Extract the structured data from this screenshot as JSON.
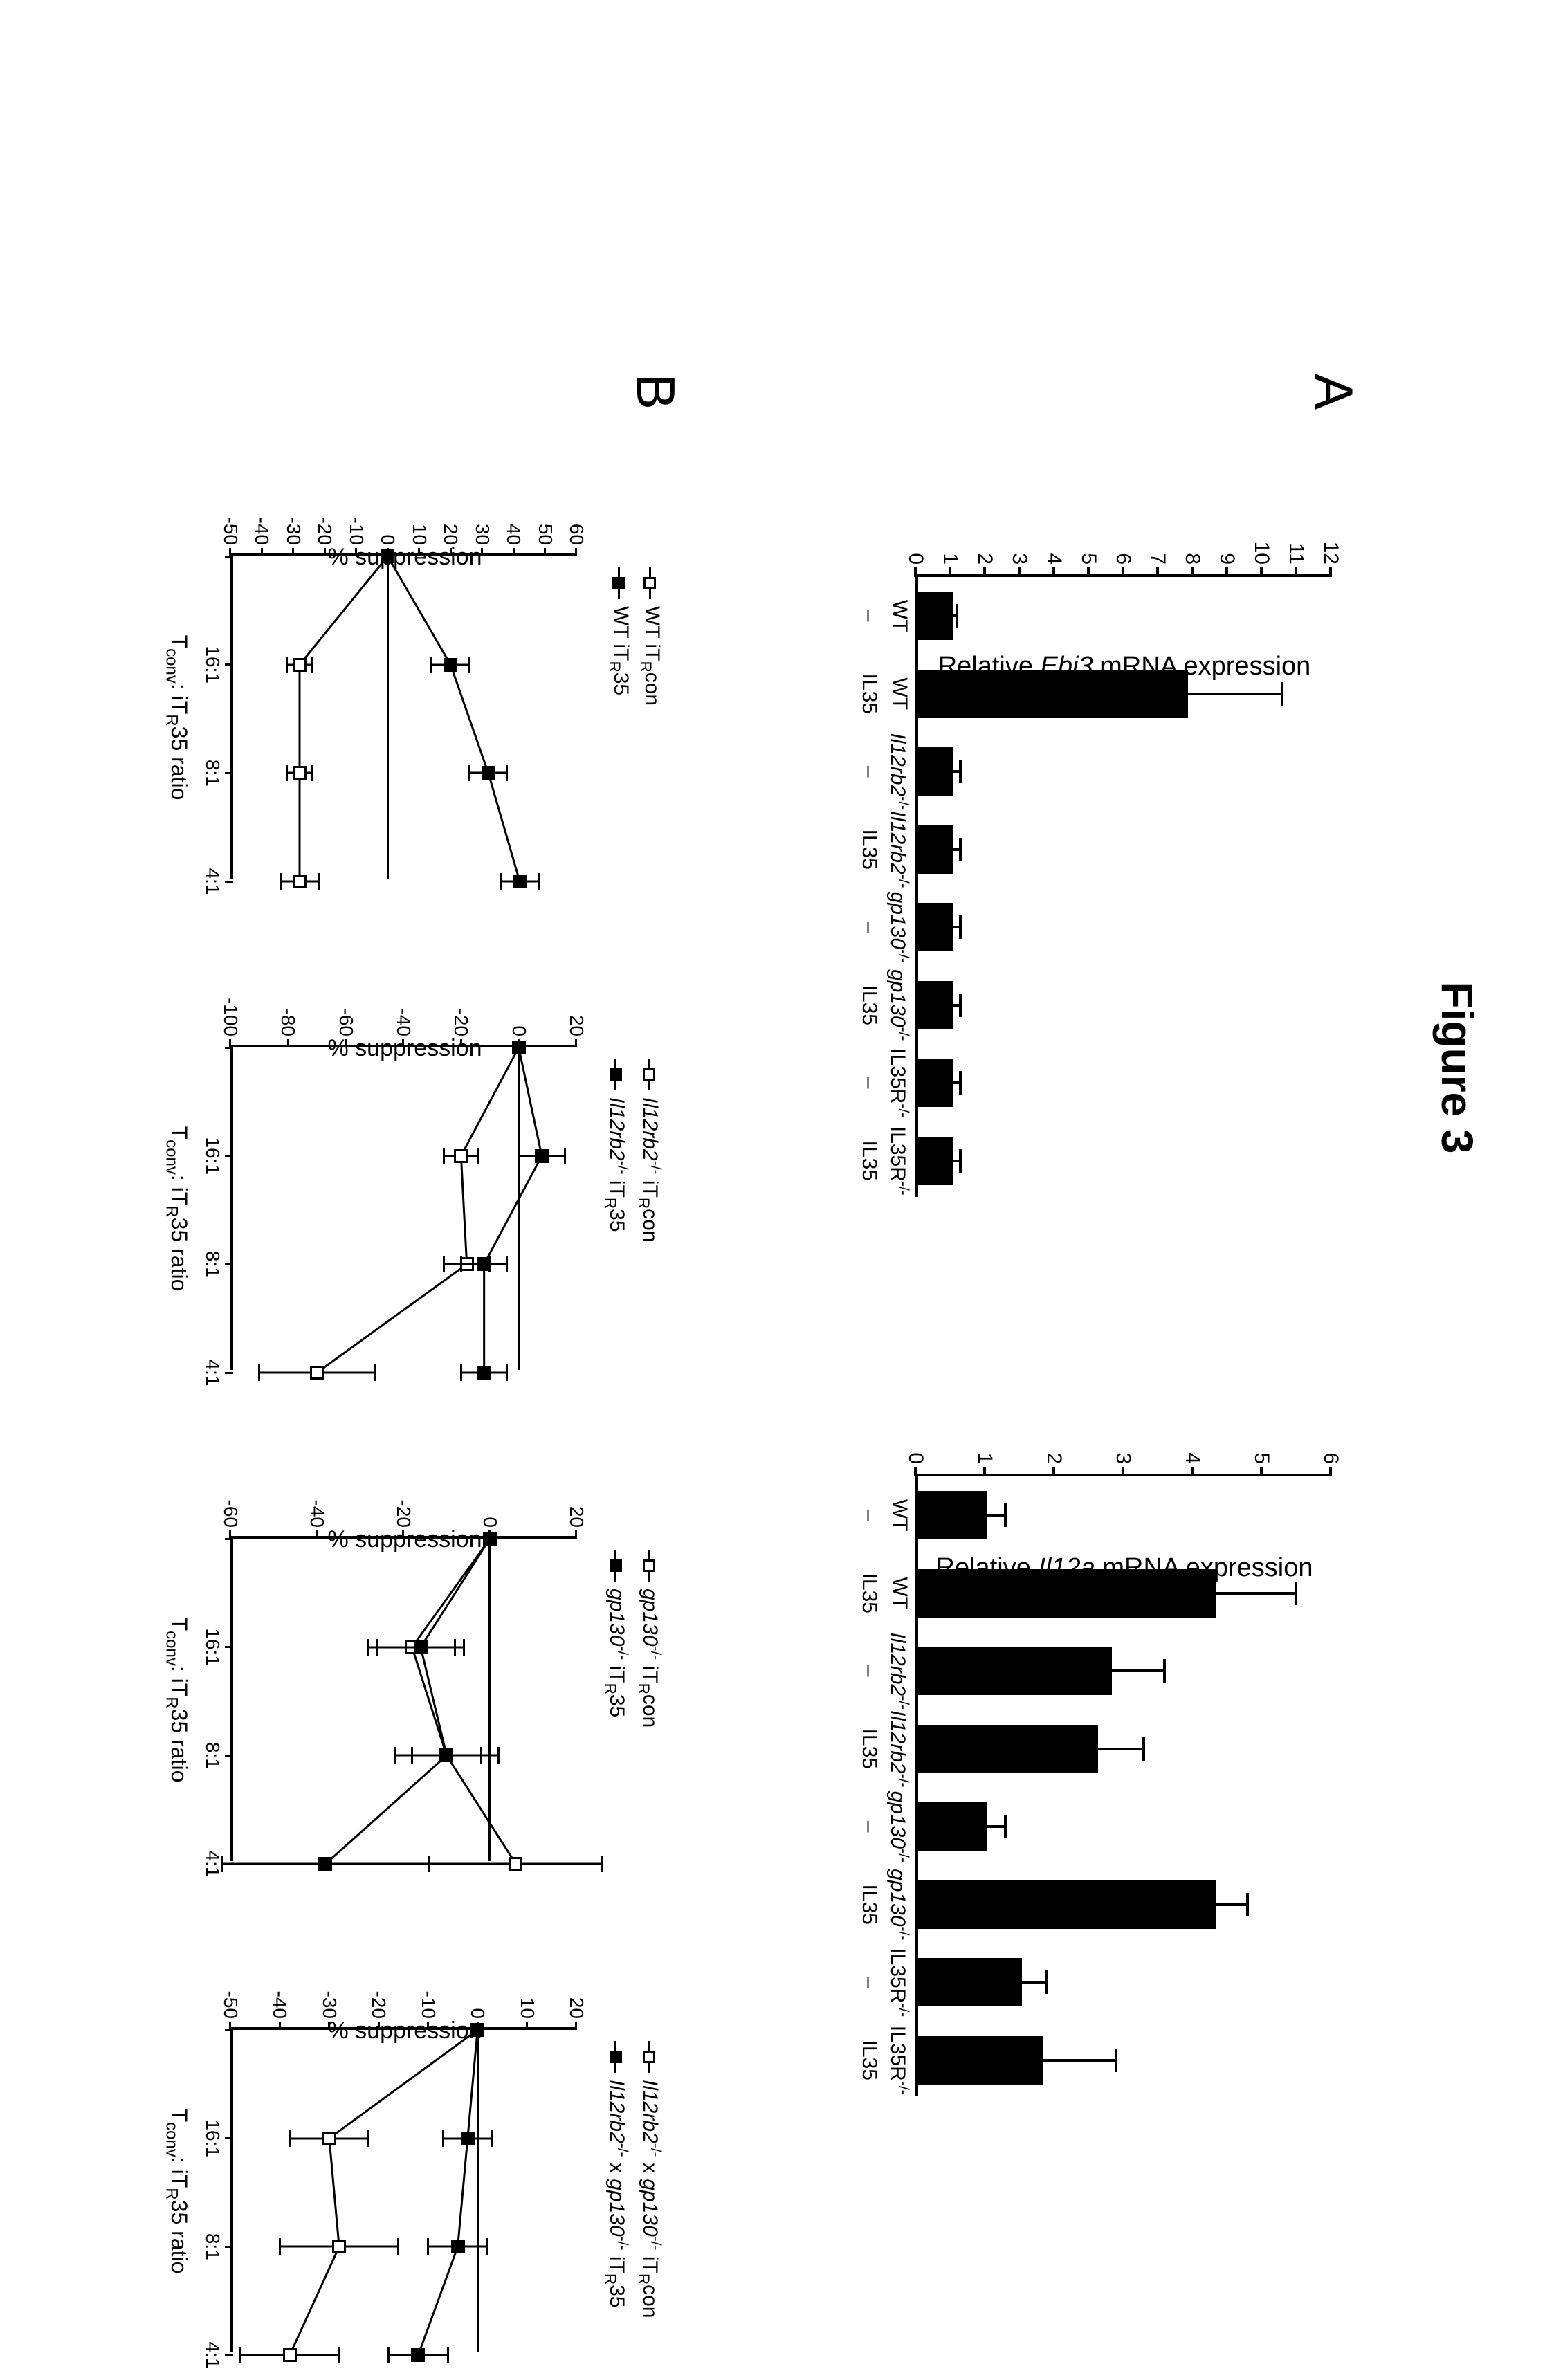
{
  "figure_title": "Figure 3",
  "panelA": {
    "label": "A",
    "charts": [
      {
        "ylabel_html": "Relative <i>Ebi3</i> mRNA expression",
        "ymin": 0,
        "ymax": 12,
        "ystep": 1,
        "bar_color": "#000000",
        "categories": [
          {
            "top_html": "WT",
            "sub": "–"
          },
          {
            "top_html": "WT",
            "sub": "IL35"
          },
          {
            "top_html": "<i>Il12rb2</i><span class=\"sup\">-/-</span>",
            "sub": "–"
          },
          {
            "top_html": "<i>Il12rb2</i><span class=\"sup\">-/-</span>",
            "sub": "IL35"
          },
          {
            "top_html": "<i>gp130</i><span class=\"sup\">-/-</span>",
            "sub": "–"
          },
          {
            "top_html": "<i>gp130</i><span class=\"sup\">-/-</span>",
            "sub": "IL35"
          },
          {
            "top_html": "IL35R<span class=\"sup\">-/-</span>",
            "sub": "–"
          },
          {
            "top_html": "IL35R<span class=\"sup\">-/-</span>",
            "sub": "IL35"
          }
        ],
        "values": [
          1.0,
          7.8,
          1.0,
          1.0,
          1.0,
          1.0,
          1.0,
          1.0
        ],
        "errs": [
          0.2,
          2.8,
          0.3,
          0.3,
          0.3,
          0.3,
          0.3,
          0.3
        ]
      },
      {
        "ylabel_html": "Relative <i>Il12a</i> mRNA expression",
        "ymin": 0,
        "ymax": 6,
        "ystep": 1,
        "bar_color": "#000000",
        "categories": [
          {
            "top_html": "WT",
            "sub": "–"
          },
          {
            "top_html": "WT",
            "sub": "IL35"
          },
          {
            "top_html": "<i>Il12rb2</i><span class=\"sup\">-/-</span>",
            "sub": "–"
          },
          {
            "top_html": "<i>Il12rb2</i><span class=\"sup\">-/-</span>",
            "sub": "IL35"
          },
          {
            "top_html": "<i>gp130</i><span class=\"sup\">-/-</span>",
            "sub": "–"
          },
          {
            "top_html": "<i>gp130</i><span class=\"sup\">-/-</span>",
            "sub": "IL35"
          },
          {
            "top_html": "IL35R<span class=\"sup\">-/-</span>",
            "sub": "–"
          },
          {
            "top_html": "IL35R<span class=\"sup\">-/-</span>",
            "sub": "IL35"
          }
        ],
        "values": [
          1.0,
          4.3,
          2.8,
          2.6,
          1.0,
          4.3,
          1.5,
          1.8
        ],
        "errs": [
          0.3,
          1.2,
          0.8,
          0.7,
          0.3,
          0.5,
          0.4,
          1.1
        ]
      }
    ]
  },
  "panelB": {
    "label": "B",
    "xlabel_html": "T<span class=\"sub\">conv</span>: iT<span class=\"sub\">R</span>35 ratio",
    "ylabel": "% suppression",
    "xcats": [
      "",
      "16:1",
      "8:1",
      "4:1"
    ],
    "charts": [
      {
        "ymin": -50,
        "ymax": 60,
        "ystep": 10,
        "legend": [
          {
            "marker": "open",
            "html": "WT iT<span class=\"sub\">R</span>con"
          },
          {
            "marker": "filled",
            "html": "WT iT<span class=\"sub\">R</span>35"
          }
        ],
        "series": [
          {
            "marker": "open",
            "y": [
              0,
              -28,
              -28,
              -28
            ],
            "err": [
              0,
              4,
              4,
              6
            ]
          },
          {
            "marker": "filled",
            "y": [
              0,
              20,
              32,
              42
            ],
            "err": [
              0,
              6,
              6,
              6
            ]
          }
        ]
      },
      {
        "ymin": -100,
        "ymax": 20,
        "ystep": 20,
        "legend": [
          {
            "marker": "open",
            "html": "<i>Il12rb2</i><span class=\"sup\">-/-</span> iT<span class=\"sub\">R</span>con"
          },
          {
            "marker": "filled",
            "html": "<i>Il12rb2</i><span class=\"sup\">-/-</span> iT<span class=\"sub\">R</span>35"
          }
        ],
        "series": [
          {
            "marker": "open",
            "y": [
              0,
              -20,
              -18,
              -70
            ],
            "err": [
              0,
              6,
              8,
              20
            ]
          },
          {
            "marker": "filled",
            "y": [
              0,
              8,
              -12,
              -12
            ],
            "err": [
              0,
              8,
              8,
              8
            ]
          }
        ]
      },
      {
        "ymin": -60,
        "ymax": 20,
        "ystep": 20,
        "legend": [
          {
            "marker": "open",
            "html": "<i>gp130</i><span class=\"sup\">-/-</span> iT<span class=\"sub\">R</span>con"
          },
          {
            "marker": "filled",
            "html": "<i>gp130</i><span class=\"sup\">-/-</span> iT<span class=\"sub\">R</span>35"
          }
        ],
        "series": [
          {
            "marker": "open",
            "y": [
              0,
              -18,
              -10,
              6
            ],
            "err": [
              0,
              10,
              12,
              20
            ]
          },
          {
            "marker": "filled",
            "y": [
              0,
              -16,
              -10,
              -38
            ],
            "err": [
              0,
              10,
              8,
              24
            ]
          }
        ]
      },
      {
        "ymin": -50,
        "ymax": 20,
        "ystep": 10,
        "legend": [
          {
            "marker": "open",
            "html": "<i>Il12rb2</i><span class=\"sup\">-/-</span> x <i>gp130</i><span class=\"sup\">-/-</span> iT<span class=\"sub\">R</span>con"
          },
          {
            "marker": "filled",
            "html": "<i>Il12rb2</i><span class=\"sup\">-/-</span> x <i>gp130</i><span class=\"sup\">-/-</span> iT<span class=\"sub\">R</span>35"
          }
        ],
        "series": [
          {
            "marker": "open",
            "y": [
              0,
              -30,
              -28,
              -38
            ],
            "err": [
              0,
              8,
              12,
              10
            ]
          },
          {
            "marker": "filled",
            "y": [
              0,
              -2,
              -4,
              -12
            ],
            "err": [
              0,
              5,
              6,
              6
            ]
          }
        ]
      }
    ]
  },
  "colors": {
    "axis": "#000000",
    "bar": "#000000",
    "line": "#000000",
    "bg": "#ffffff"
  }
}
